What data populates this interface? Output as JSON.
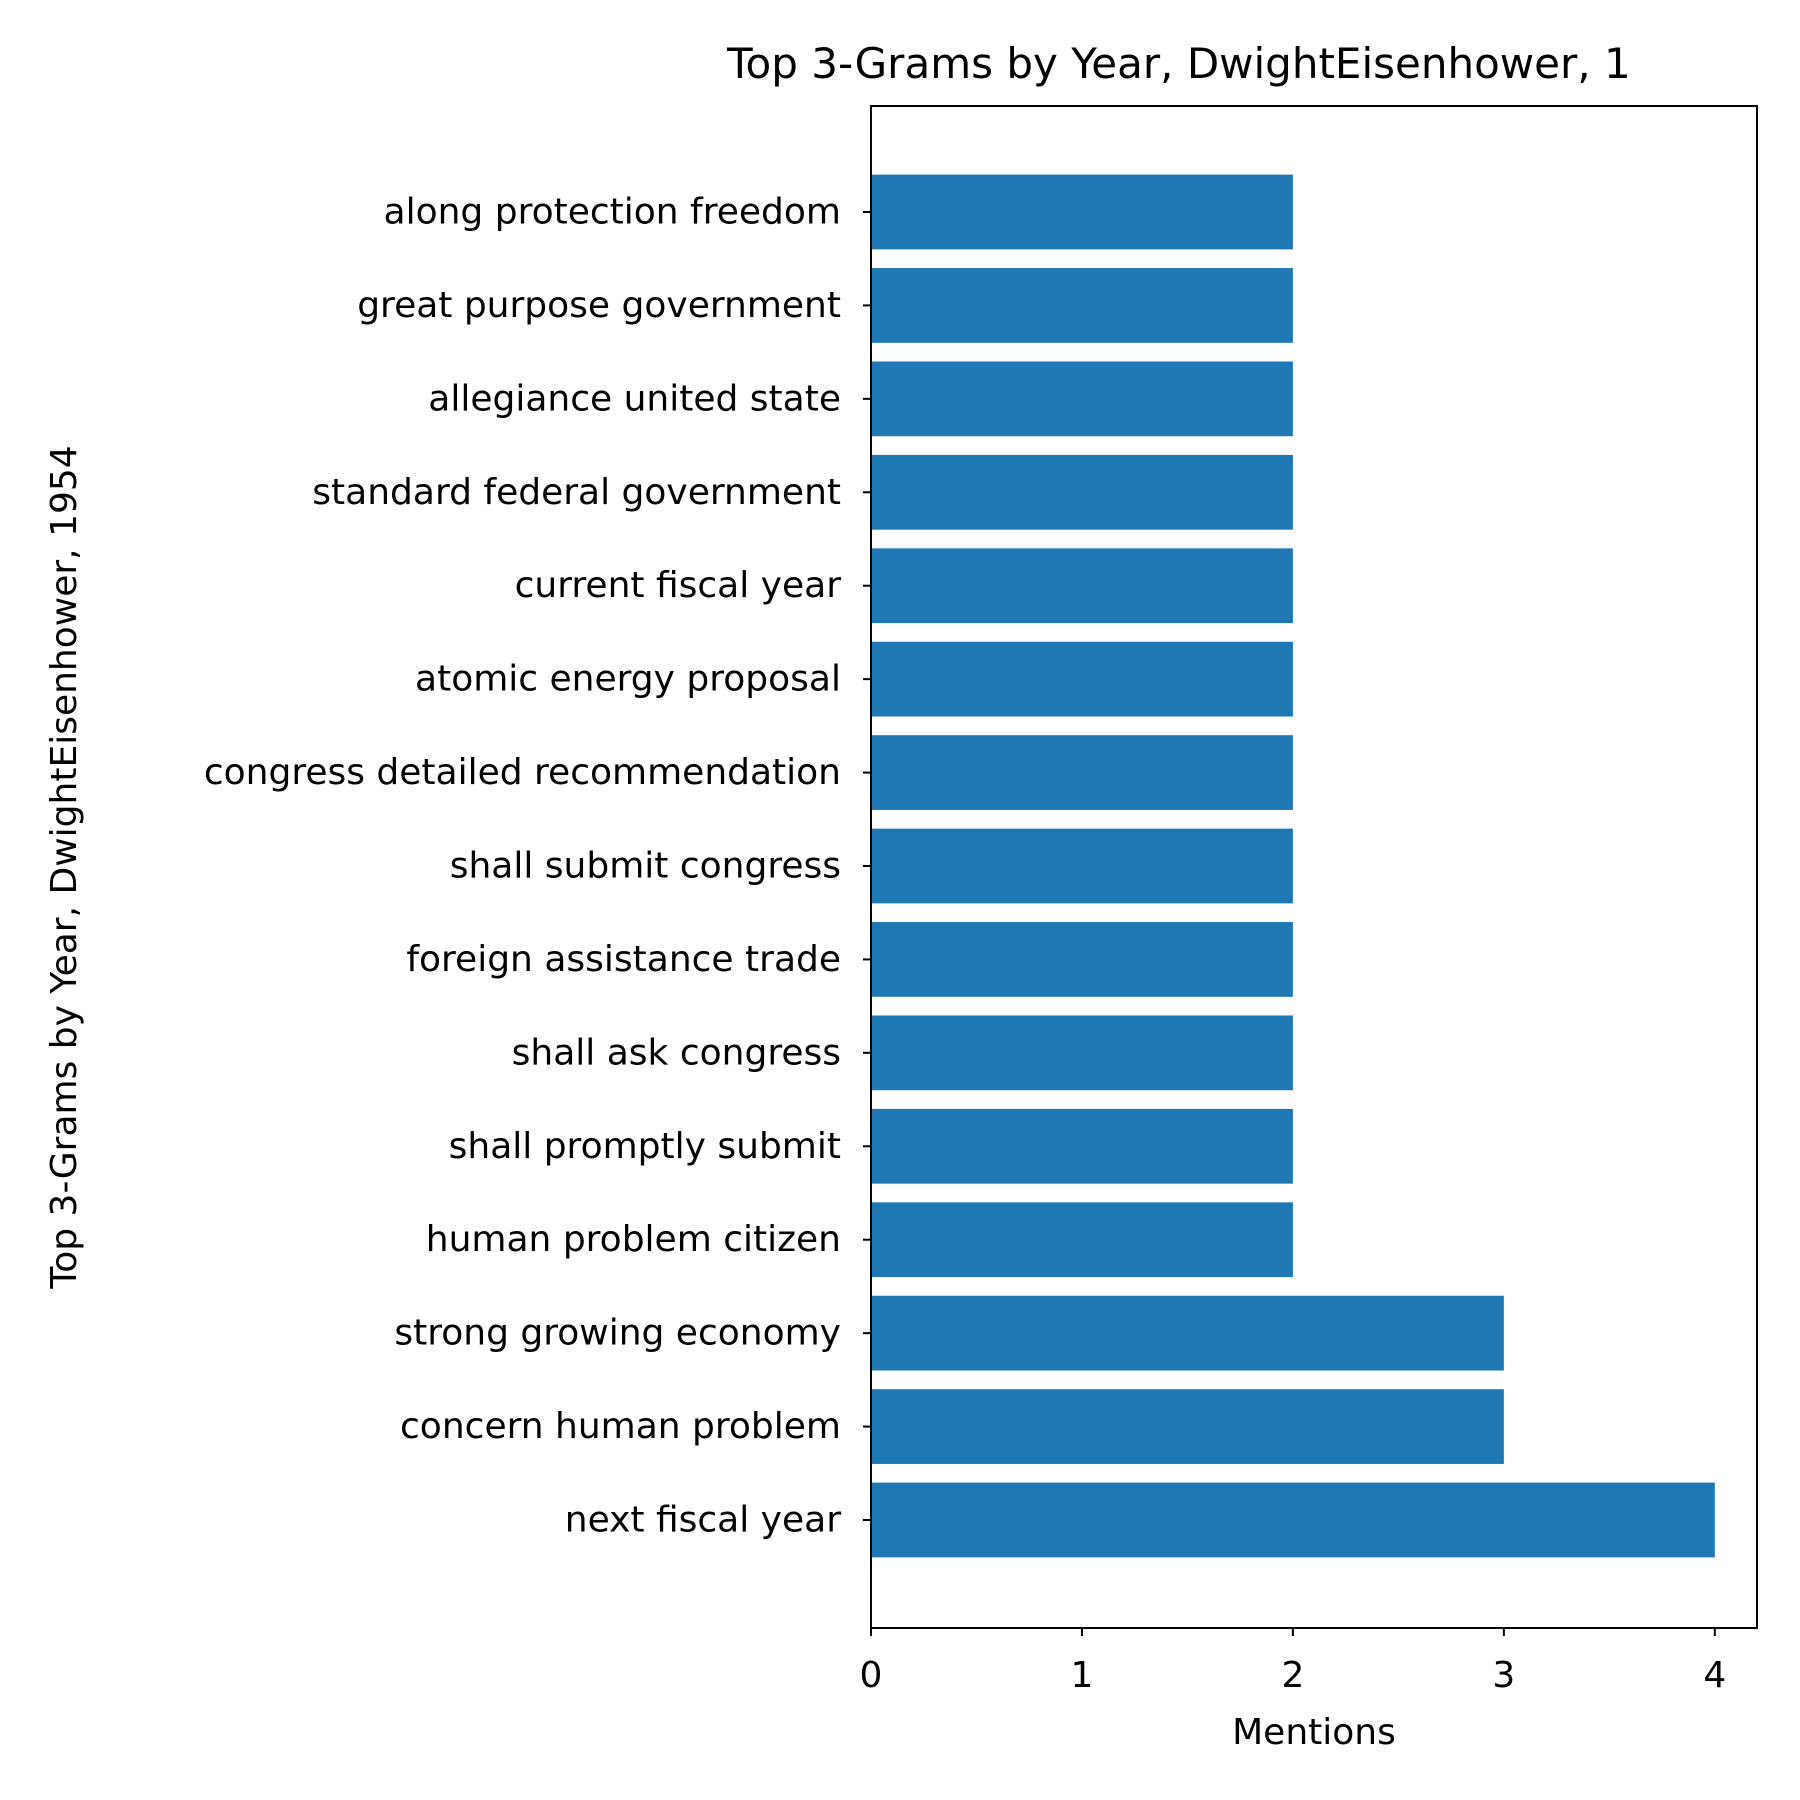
{
  "chart_data": {
    "type": "bar",
    "orientation": "horizontal",
    "title": "Top 3-Grams by Year, DwightEisenhower, 1",
    "xlabel": "Mentions",
    "ylabel": "Top 3-Grams by Year, DwightEisenhower, 1954",
    "categories": [
      "next fiscal year",
      "concern human problem",
      "strong growing economy",
      "human problem citizen",
      "shall promptly submit",
      "shall ask congress",
      "foreign assistance trade",
      "shall submit congress",
      "congress detailed recommendation",
      "atomic energy proposal",
      "current fiscal year",
      "standard federal government",
      "allegiance united state",
      "great purpose government",
      "along protection freedom"
    ],
    "values": [
      4,
      3,
      3,
      2,
      2,
      2,
      2,
      2,
      2,
      2,
      2,
      2,
      2,
      2,
      2
    ],
    "xlim": [
      0,
      4.2
    ],
    "xticks": [
      "0",
      "1",
      "2",
      "3",
      "4"
    ],
    "grid": false,
    "colors": {
      "bar": "#1f77b4"
    }
  }
}
